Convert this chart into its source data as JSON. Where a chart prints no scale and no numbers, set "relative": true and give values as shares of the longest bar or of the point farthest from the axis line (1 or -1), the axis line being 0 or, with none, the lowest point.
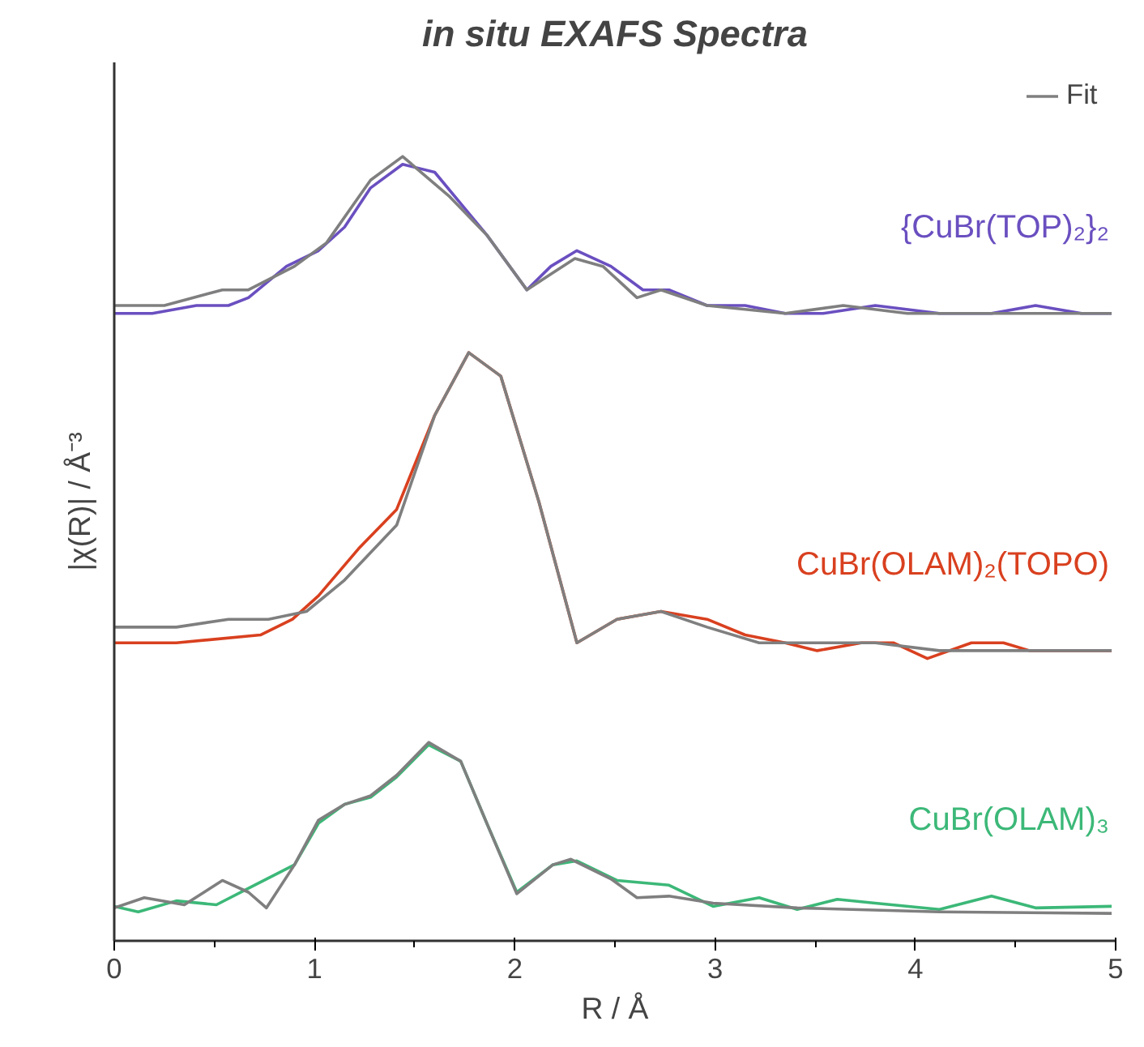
{
  "chart_data": {
    "type": "line",
    "title": "in situ EXAFS Spectra",
    "xlabel": "R / Å",
    "ylabel": "|χ(R)| / Å⁻³",
    "relative": true,
    "xlim": [
      0,
      5
    ],
    "xticks": [
      0,
      1,
      2,
      3,
      4,
      5
    ],
    "grid": false,
    "legend": "top right",
    "marker": "none",
    "line_style": "solid",
    "series": [
      {
        "name": "{CuBr(TOP)₂}₂",
        "color": "#6a4fc0",
        "x": [
          0.0,
          0.19,
          0.41,
          0.57,
          0.67,
          0.86,
          1.02,
          1.15,
          1.28,
          1.44,
          1.6,
          1.86,
          2.06,
          2.18,
          2.31,
          2.48,
          2.64,
          2.77,
          2.96,
          3.15,
          3.35,
          3.54,
          3.8,
          4.12,
          4.38,
          4.6,
          4.83,
          4.98
        ],
        "values": [
          0.8,
          0.8,
          0.81,
          0.81,
          0.82,
          0.86,
          0.88,
          0.91,
          0.96,
          0.99,
          0.98,
          0.9,
          0.83,
          0.86,
          0.88,
          0.86,
          0.83,
          0.83,
          0.81,
          0.81,
          0.8,
          0.8,
          0.81,
          0.8,
          0.8,
          0.81,
          0.8,
          0.8
        ]
      },
      {
        "name": "Fit",
        "color": "#7f7f7f",
        "x": [
          0.0,
          0.25,
          0.54,
          0.67,
          0.9,
          1.06,
          1.28,
          1.44,
          1.67,
          1.86,
          2.06,
          2.18,
          2.3,
          2.44,
          2.61,
          2.73,
          2.96,
          3.35,
          3.64,
          3.96,
          4.28,
          4.6,
          4.98
        ],
        "values": [
          0.81,
          0.81,
          0.83,
          0.83,
          0.86,
          0.89,
          0.97,
          1.0,
          0.95,
          0.9,
          0.83,
          0.85,
          0.87,
          0.86,
          0.82,
          0.83,
          0.81,
          0.8,
          0.81,
          0.8,
          0.8,
          0.8,
          0.8
        ]
      },
      {
        "name": "CuBr(OLAM)₂(TOPO)",
        "color": "#d9401f",
        "x": [
          0.0,
          0.31,
          0.73,
          0.89,
          1.02,
          1.22,
          1.41,
          1.6,
          1.77,
          1.93,
          2.12,
          2.31,
          2.51,
          2.73,
          2.96,
          3.15,
          3.35,
          3.51,
          3.73,
          3.89,
          4.06,
          4.28,
          4.44,
          4.57,
          4.98
        ],
        "values": [
          0.38,
          0.38,
          0.39,
          0.41,
          0.44,
          0.5,
          0.55,
          0.67,
          0.75,
          0.72,
          0.56,
          0.38,
          0.41,
          0.42,
          0.41,
          0.39,
          0.38,
          0.37,
          0.38,
          0.38,
          0.36,
          0.38,
          0.38,
          0.37,
          0.37
        ]
      },
      {
        "color": "#7f7f7f",
        "x": [
          0.0,
          0.31,
          0.57,
          0.77,
          0.96,
          1.15,
          1.41,
          1.6,
          1.77,
          1.93,
          2.12,
          2.31,
          2.51,
          2.73,
          2.96,
          3.22,
          3.48,
          3.8,
          4.12,
          4.98
        ],
        "values": [
          0.4,
          0.4,
          0.41,
          0.41,
          0.42,
          0.46,
          0.53,
          0.67,
          0.75,
          0.72,
          0.56,
          0.38,
          0.41,
          0.42,
          0.4,
          0.38,
          0.38,
          0.38,
          0.37,
          0.37
        ]
      },
      {
        "name": "CuBr(OLAM)₃",
        "color": "#3cb878",
        "x": [
          0.0,
          0.12,
          0.31,
          0.51,
          0.7,
          0.9,
          1.02,
          1.15,
          1.28,
          1.41,
          1.57,
          1.73,
          1.86,
          2.01,
          2.19,
          2.31,
          2.51,
          2.77,
          2.99,
          3.22,
          3.41,
          3.61,
          3.8,
          4.12,
          4.38,
          4.6,
          4.98
        ],
        "values": [
          0.044,
          0.037,
          0.051,
          0.046,
          0.071,
          0.097,
          0.15,
          0.174,
          0.183,
          0.209,
          0.25,
          0.229,
          0.15,
          0.062,
          0.097,
          0.102,
          0.077,
          0.071,
          0.044,
          0.055,
          0.04,
          0.053,
          0.048,
          0.04,
          0.057,
          0.042,
          0.044
        ]
      },
      {
        "color": "#7f7f7f",
        "x": [
          0.0,
          0.15,
          0.35,
          0.54,
          0.67,
          0.76,
          0.9,
          1.02,
          1.15,
          1.28,
          1.41,
          1.57,
          1.73,
          1.86,
          2.01,
          2.19,
          2.28,
          2.48,
          2.61,
          2.77,
          2.99,
          3.41,
          4.12,
          4.98
        ],
        "values": [
          0.042,
          0.055,
          0.046,
          0.077,
          0.062,
          0.042,
          0.097,
          0.154,
          0.174,
          0.185,
          0.211,
          0.253,
          0.229,
          0.15,
          0.06,
          0.097,
          0.104,
          0.079,
          0.055,
          0.057,
          0.048,
          0.042,
          0.037,
          0.035
        ]
      }
    ]
  }
}
